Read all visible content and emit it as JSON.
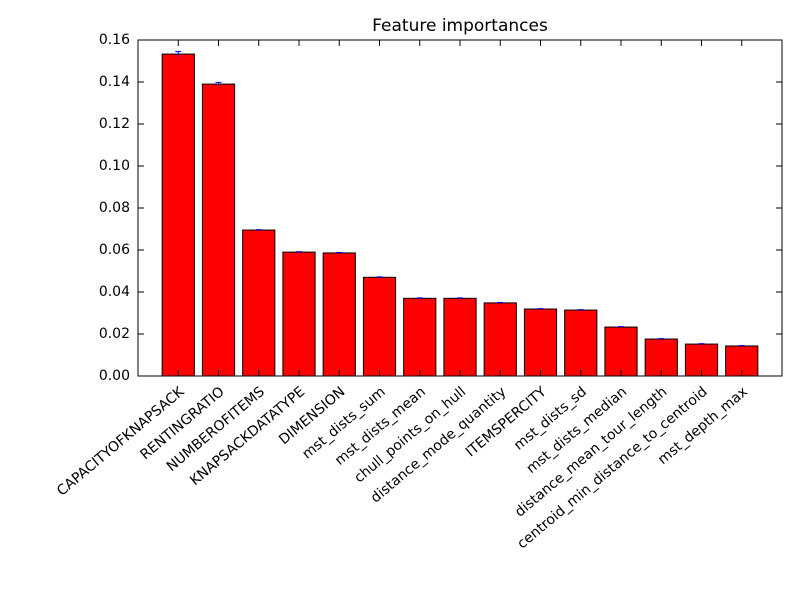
{
  "chart_data": {
    "type": "bar",
    "title": "Feature importances",
    "categories": [
      "CAPACITYOFKNAPSACK",
      "RENTINGRATIO",
      "NUMBEROFITEMS",
      "KNAPSACKDATATYPE",
      "DIMENSION",
      "mst_dists_sum",
      "mst_dists_mean",
      "chull_points_on_hull",
      "distance_mode_quantity",
      "ITEMSPERCITY",
      "mst_dists_sd",
      "mst_dists_median",
      "distance_mean_tour_length",
      "centroid_min_distance_to_centroid",
      "mst_depth_max"
    ],
    "values": [
      0.1533,
      0.139,
      0.0695,
      0.059,
      0.0586,
      0.047,
      0.037,
      0.037,
      0.0348,
      0.0319,
      0.0314,
      0.0233,
      0.0176,
      0.0152,
      0.0143
    ],
    "errors": [
      0.0012,
      0.0008,
      0.0002,
      0.0002,
      0.0002,
      0.0002,
      0.0002,
      0.0002,
      0.0002,
      0.0002,
      0.0002,
      0.0002,
      0.0002,
      0.0002,
      0.0002
    ],
    "color": "#ff0000",
    "error_color": "#0000ff",
    "ylim": [
      0,
      0.16
    ],
    "yticks": [
      {
        "value": 0,
        "label": "0.00"
      },
      {
        "value": 0.02,
        "label": "0.02"
      },
      {
        "value": 0.04,
        "label": "0.04"
      },
      {
        "value": 0.06,
        "label": "0.06"
      },
      {
        "value": 0.08,
        "label": "0.08"
      },
      {
        "value": 0.1,
        "label": "0.10"
      },
      {
        "value": 0.12,
        "label": "0.12"
      },
      {
        "value": 0.14,
        "label": "0.14"
      },
      {
        "value": 0.16,
        "label": "0.16"
      }
    ],
    "grid": false
  }
}
